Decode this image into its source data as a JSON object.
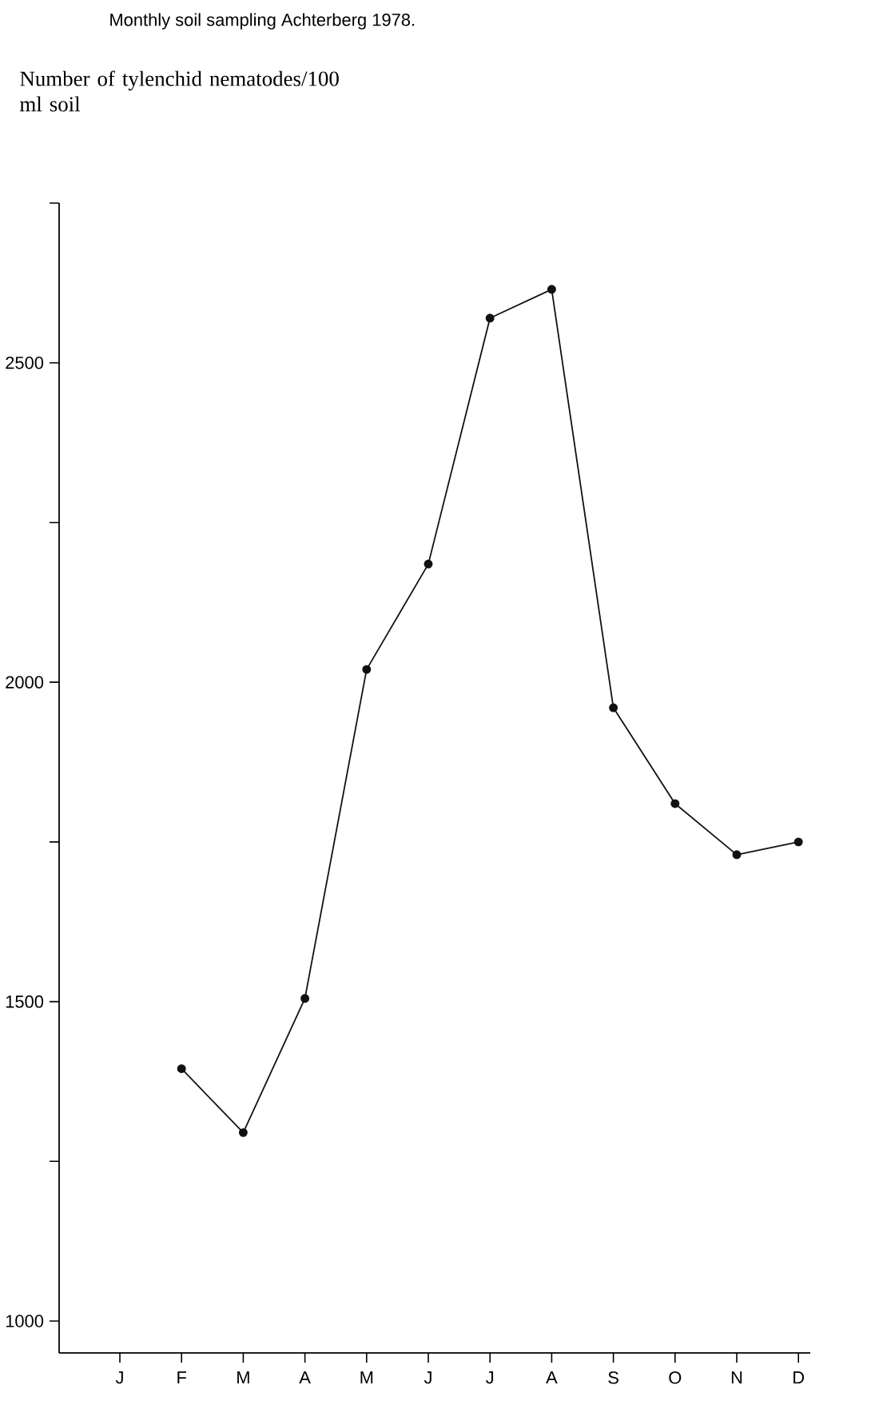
{
  "chart_data": {
    "type": "line",
    "title": "Monthly soil sampling  Achterberg  1978.",
    "ylabel": "Number of tylenchid nematodes/100 ml soil",
    "categories": [
      "J",
      "F",
      "M",
      "A",
      "M",
      "J",
      "J",
      "A",
      "S",
      "O",
      "N",
      "D"
    ],
    "values": [
      null,
      1395,
      1295,
      1505,
      2020,
      2185,
      2570,
      2615,
      1960,
      1810,
      1730,
      1750
    ],
    "color": "#111111",
    "marker": "circle",
    "line_style": "solid",
    "ylim": [
      950,
      2750
    ],
    "yticks": [
      1000,
      {
        "value": 1250,
        "label": null
      },
      1500,
      {
        "value": 1750,
        "label": null
      },
      2000,
      {
        "value": 2250,
        "label": null
      },
      2500,
      {
        "value": 2750,
        "label": null
      }
    ]
  }
}
